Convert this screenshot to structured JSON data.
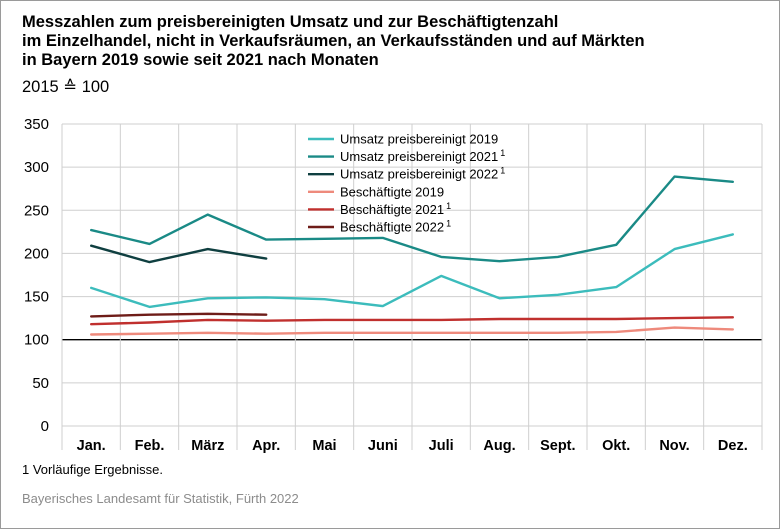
{
  "title_lines": [
    "Messzahlen zum preisbereinigten Umsatz und zur Beschäftigtenzahl",
    "im Einzelhandel, nicht in Verkaufsräumen, an Verkaufsständen und auf Märkten",
    "in Bayern 2019 sowie seit 2021 nach Monaten"
  ],
  "subtitle": "2015 ≙ 100",
  "footnote": "1  Vorläufige Ergebnisse.",
  "source": "Bayerisches Landesamt für Statistik, Fürth 2022",
  "chart_data": {
    "type": "line",
    "categories": [
      "Jan.",
      "Feb.",
      "März",
      "Apr.",
      "Mai",
      "Juni",
      "Juli",
      "Aug.",
      "Sept.",
      "Okt.",
      "Nov.",
      "Dez."
    ],
    "ylim": [
      0,
      350
    ],
    "yticks": [
      "0",
      "50",
      "100",
      "150",
      "200",
      "250",
      "300",
      "350"
    ],
    "grid": "horizontal",
    "legend_position": "top-center",
    "series": [
      {
        "name": "Umsatz preisbereinigt 2019",
        "sup": "",
        "color": "#3cbcbc",
        "values": [
          160,
          138,
          148,
          149,
          147,
          139,
          174,
          148,
          152,
          161,
          205,
          222
        ]
      },
      {
        "name": "Umsatz preisbereinigt 2021",
        "sup": "1",
        "color": "#1a8a86",
        "values": [
          227,
          211,
          245,
          216,
          217,
          218,
          196,
          191,
          196,
          210,
          289,
          283
        ]
      },
      {
        "name": "Umsatz preisbereinigt 2022",
        "sup": "1",
        "color": "#0f3f40",
        "values": [
          209,
          190,
          205,
          194,
          null,
          null,
          null,
          null,
          null,
          null,
          null,
          null
        ]
      },
      {
        "name": "Beschäftigte 2019",
        "sup": "",
        "color": "#ee8a7c",
        "values": [
          106,
          107,
          108,
          107,
          108,
          108,
          108,
          108,
          108,
          109,
          114,
          112
        ]
      },
      {
        "name": "Beschäftigte 2021",
        "sup": "1",
        "color": "#c0302e",
        "values": [
          118,
          120,
          123,
          122,
          123,
          123,
          123,
          124,
          124,
          124,
          125,
          126
        ]
      },
      {
        "name": "Beschäftigte 2022",
        "sup": "1",
        "color": "#6e1c18",
        "values": [
          127,
          129,
          130,
          129,
          null,
          null,
          null,
          null,
          null,
          null,
          null,
          null
        ]
      }
    ]
  }
}
